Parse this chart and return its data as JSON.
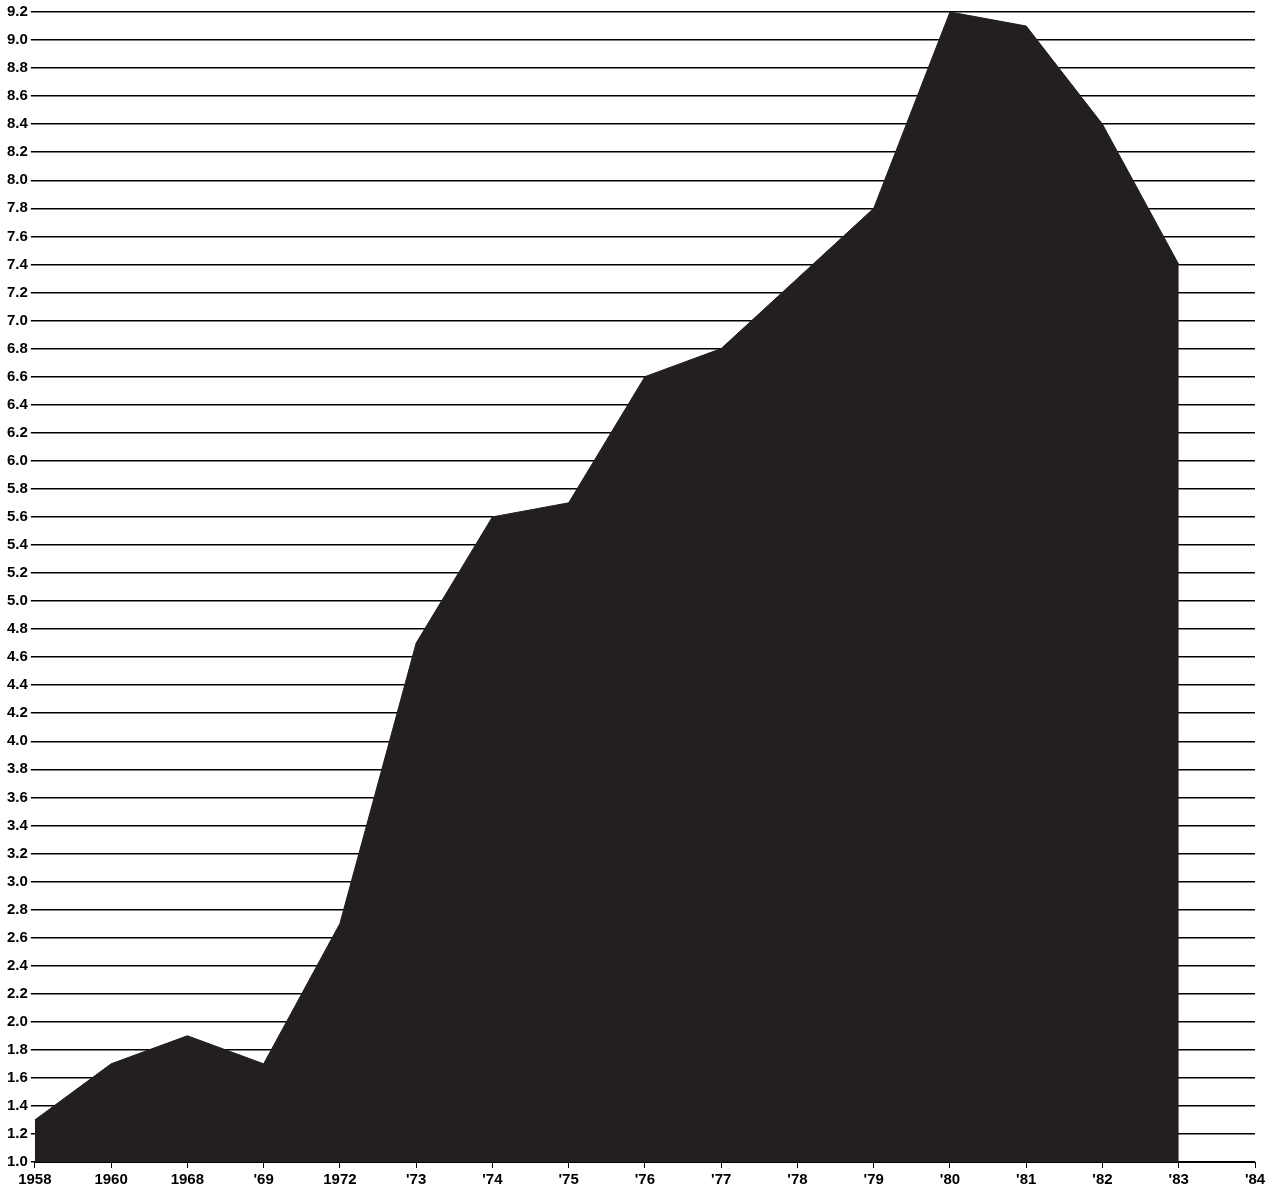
{
  "chart_data": {
    "type": "area",
    "categories": [
      "1958",
      "1960",
      "1968",
      "'69",
      "1972",
      "'73",
      "'74",
      "'75",
      "'76",
      "'77",
      "'78",
      "'79",
      "'80",
      "'81",
      "'82",
      "'83",
      "'84"
    ],
    "series": [
      {
        "color": "#231f20",
        "values": [
          1.3,
          1.7,
          1.9,
          1.7,
          2.7,
          4.7,
          5.6,
          5.7,
          6.6,
          6.8,
          7.3,
          7.8,
          9.2,
          9.1,
          8.4,
          7.4,
          null
        ]
      }
    ],
    "ylim": [
      1.0,
      9.2
    ],
    "yticks": [
      {
        "value": 1.0,
        "label": "1.0"
      },
      {
        "value": 1.2,
        "label": "1.2"
      },
      {
        "value": 1.4,
        "label": "1.4"
      },
      {
        "value": 1.6,
        "label": "1.6"
      },
      {
        "value": 1.8,
        "label": "1.8"
      },
      {
        "value": 2.0,
        "label": "2.0"
      },
      {
        "value": 2.2,
        "label": "2.2"
      },
      {
        "value": 2.4,
        "label": "2.4"
      },
      {
        "value": 2.6,
        "label": "2.6"
      },
      {
        "value": 2.8,
        "label": "2.8"
      },
      {
        "value": 3.0,
        "label": "3.0"
      },
      {
        "value": 3.2,
        "label": "3.2"
      },
      {
        "value": 3.4,
        "label": "3.4"
      },
      {
        "value": 3.6,
        "label": "3.6"
      },
      {
        "value": 3.8,
        "label": "3.8"
      },
      {
        "value": 4.0,
        "label": "4.0"
      },
      {
        "value": 4.2,
        "label": "4.2"
      },
      {
        "value": 4.4,
        "label": "4.4"
      },
      {
        "value": 4.6,
        "label": "4.6"
      },
      {
        "value": 4.8,
        "label": "4.8"
      },
      {
        "value": 5.0,
        "label": "5.0"
      },
      {
        "value": 5.2,
        "label": "5.2"
      },
      {
        "value": 5.4,
        "label": "5.4"
      },
      {
        "value": 5.6,
        "label": "5.6"
      },
      {
        "value": 5.8,
        "label": "5.8"
      },
      {
        "value": 6.0,
        "label": "6.0"
      },
      {
        "value": 6.2,
        "label": "6.2"
      },
      {
        "value": 6.4,
        "label": "6.4"
      },
      {
        "value": 6.6,
        "label": "6.6"
      },
      {
        "value": 6.8,
        "label": "6.8"
      },
      {
        "value": 7.0,
        "label": "7.0"
      },
      {
        "value": 7.2,
        "label": "7.2"
      },
      {
        "value": 7.4,
        "label": "7.4"
      },
      {
        "value": 7.6,
        "label": "7.6"
      },
      {
        "value": 7.8,
        "label": "7.8"
      },
      {
        "value": 8.0,
        "label": "8.0"
      },
      {
        "value": 8.2,
        "label": "8.2"
      },
      {
        "value": 8.4,
        "label": "8.4"
      },
      {
        "value": 8.6,
        "label": "8.6"
      },
      {
        "value": 8.8,
        "label": "8.8"
      },
      {
        "value": 9.0,
        "label": "9.0"
      },
      {
        "value": 9.2,
        "label": "9.2"
      }
    ],
    "grid": "y"
  }
}
